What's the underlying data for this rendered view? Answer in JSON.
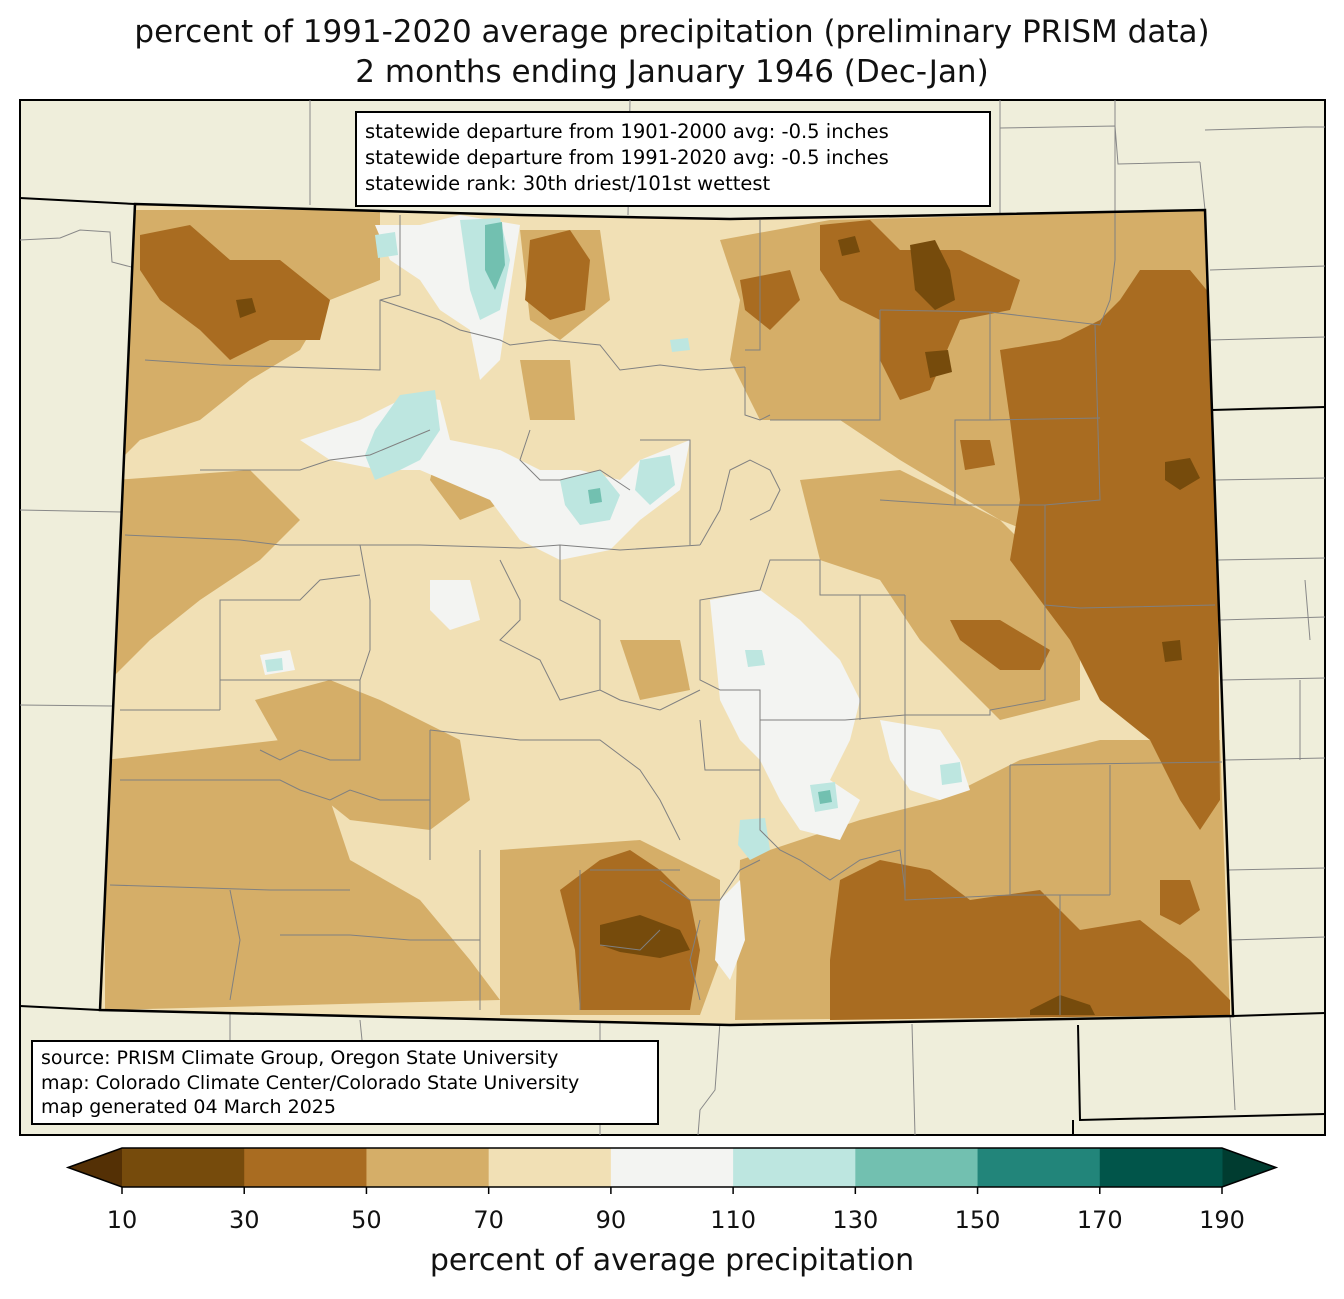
{
  "title": {
    "line1": "percent of 1991-2020 average precipitation (preliminary PRISM data)",
    "line2": "2 months ending January 1946 (Dec-Jan)"
  },
  "stats": {
    "line1": "statewide departure from 1901-2000 avg: -0.5 inches",
    "line2": "statewide departure from 1991-2020 avg: -0.5 inches",
    "line3": "statewide rank: 30th driest/101st wettest"
  },
  "source": {
    "line1": "source: PRISM Climate Group, Oregon State University",
    "line2": "map: Colorado Climate Center/Colorado State University",
    "line3": "map generated 04 March 2025"
  },
  "colorbar": {
    "label": "percent of average precipitation",
    "ticks": [
      "10",
      "30",
      "50",
      "70",
      "90",
      "110",
      "130",
      "150",
      "170",
      "190"
    ],
    "colors": [
      "#764b0c",
      "#a96c21",
      "#d5ae68",
      "#f1e0b5",
      "#f3f4f2",
      "#bde6e0",
      "#72c0b0",
      "#22857a",
      "#01554a"
    ],
    "under_color": "#543005",
    "over_color": "#003c30"
  },
  "map_colors": {
    "background_land": "#efeedb",
    "state_fill": "#f1e0b5",
    "state_border": "#000000",
    "county_border": "#808080"
  }
}
